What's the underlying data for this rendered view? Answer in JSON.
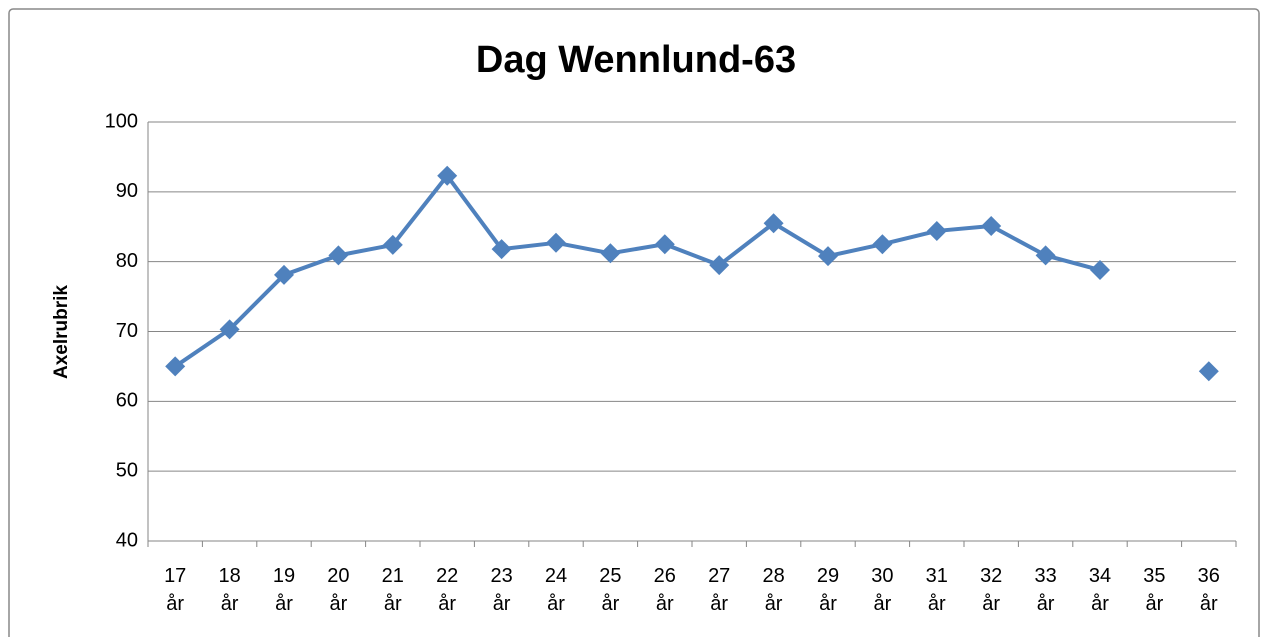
{
  "chart_data": {
    "type": "line",
    "title": "Dag Wennlund-63",
    "y_label": "Axelrubrik",
    "categories": [
      "17 år",
      "18 år",
      "19 år",
      "20 år",
      "21 år",
      "22 år",
      "23 år",
      "24 år",
      "25 år",
      "26 år",
      "27 år",
      "28 år",
      "29 år",
      "30 år",
      "31 år",
      "32 år",
      "33 år",
      "34 år",
      "35 år",
      "36 år"
    ],
    "series": [
      {
        "name": "Dag Wennlund-63",
        "color": "#4f81bd",
        "values": [
          65.0,
          70.3,
          78.1,
          80.9,
          82.4,
          92.3,
          81.8,
          82.7,
          81.2,
          82.5,
          79.5,
          85.5,
          80.8,
          82.5,
          84.4,
          85.1,
          80.9,
          78.8,
          null,
          64.3
        ]
      }
    ],
    "ylim": [
      40,
      100
    ],
    "yticks": [
      40,
      50,
      60,
      70,
      80,
      90,
      100
    ],
    "grid": true
  }
}
